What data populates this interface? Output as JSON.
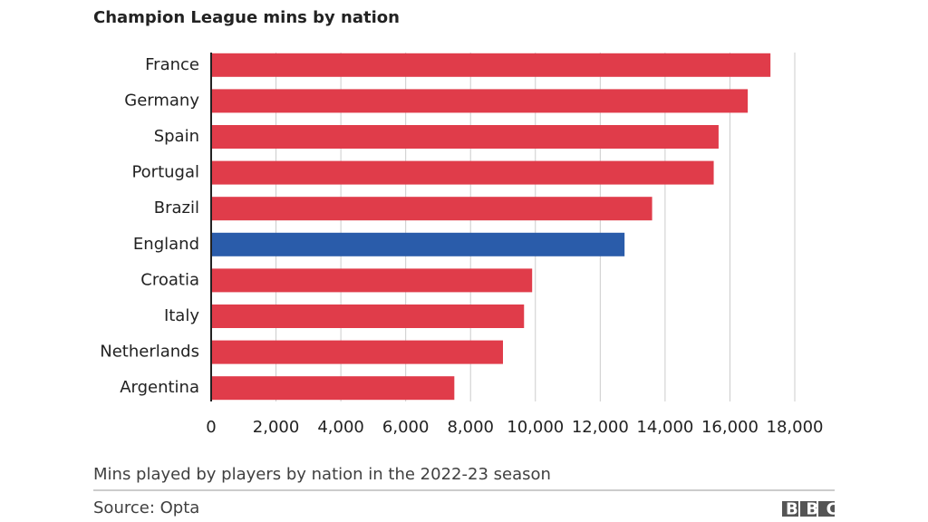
{
  "chart_data": {
    "type": "bar",
    "orientation": "horizontal",
    "title": "Champion League mins by nation",
    "categories": [
      "France",
      "Germany",
      "Spain",
      "Portugal",
      "Brazil",
      "England",
      "Croatia",
      "Italy",
      "Netherlands",
      "Argentina"
    ],
    "values": [
      17250,
      16550,
      15650,
      15500,
      13600,
      12750,
      9900,
      9650,
      9000,
      7500
    ],
    "colors": [
      "#e03c4a",
      "#e03c4a",
      "#e03c4a",
      "#e03c4a",
      "#e03c4a",
      "#2a5caa",
      "#e03c4a",
      "#e03c4a",
      "#e03c4a",
      "#e03c4a"
    ],
    "xlim": [
      0,
      18000
    ],
    "xticks": [
      0,
      {
        "value": 2000,
        "label": "2,000"
      },
      {
        "value": 4000,
        "label": "4,000"
      },
      {
        "value": 6000,
        "label": "6,000"
      },
      {
        "value": 8000,
        "label": "8,000"
      },
      {
        "value": 10000,
        "label": "10,000"
      },
      {
        "value": 12000,
        "label": "12,000"
      },
      {
        "value": 14000,
        "label": "14,000"
      },
      {
        "value": 16000,
        "label": "16,000"
      },
      {
        "value": 18000,
        "label": "18,000"
      }
    ],
    "grid": true,
    "note": "Mins played by players by nation in the 2022-23 season",
    "source": "Source: Opta",
    "logo": "BBC"
  }
}
